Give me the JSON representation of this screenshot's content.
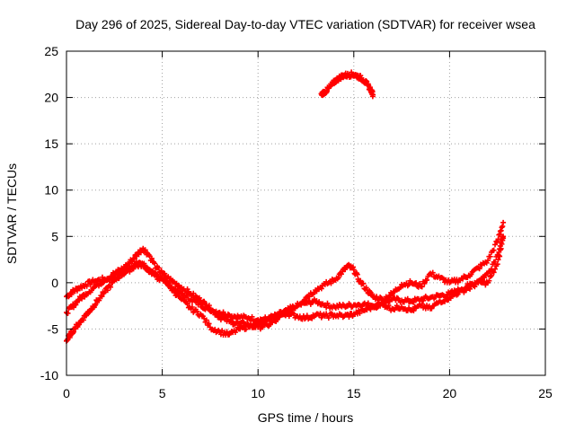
{
  "chart_data": {
    "type": "scatter",
    "title": "Day 296 of 2025, Sidereal Day-to-day VTEC variation (SDTVAR) for receiver wsea",
    "xlabel": "GPS time / hours",
    "ylabel": "SDTVAR / TECUs",
    "xlim": [
      0,
      25
    ],
    "ylim": [
      -10,
      25
    ],
    "xticks": [
      0,
      5,
      10,
      15,
      20,
      25
    ],
    "yticks": [
      -10,
      -5,
      0,
      5,
      10,
      15,
      20,
      25
    ],
    "grid": true,
    "marker": "+",
    "color": "#ff0000",
    "series": [
      {
        "name": "arc-1",
        "points": [
          [
            0.0,
            -1.5
          ],
          [
            0.3,
            -1.0
          ],
          [
            0.6,
            -0.6
          ],
          [
            1.0,
            -0.2
          ],
          [
            1.5,
            0.2
          ],
          [
            2.0,
            0.4
          ],
          [
            2.5,
            0.5
          ],
          [
            3.0,
            1.2
          ],
          [
            3.4,
            1.8
          ],
          [
            3.8,
            2.2
          ],
          [
            4.2,
            1.5
          ],
          [
            4.6,
            0.8
          ],
          [
            5.0,
            0.5
          ],
          [
            5.5,
            -0.5
          ],
          [
            6.0,
            -1.2
          ],
          [
            6.5,
            -1.8
          ],
          [
            7.0,
            -2.4
          ],
          [
            7.5,
            -2.9
          ],
          [
            8.0,
            -3.2
          ],
          [
            8.5,
            -3.5
          ],
          [
            9.0,
            -3.7
          ],
          [
            9.5,
            -3.8
          ],
          [
            10.0,
            -4.0
          ],
          [
            10.5,
            -3.9
          ],
          [
            11.0,
            -3.5
          ],
          [
            11.5,
            -3.0
          ],
          [
            12.0,
            -2.5
          ],
          [
            12.5,
            -2.2
          ],
          [
            13.0,
            -2.0
          ],
          [
            13.5,
            -2.4
          ],
          [
            14.0,
            -2.6
          ],
          [
            14.5,
            -2.5
          ],
          [
            15.0,
            -2.4
          ],
          [
            15.5,
            -2.3
          ],
          [
            16.0,
            -2.5
          ],
          [
            16.5,
            -2.2
          ],
          [
            17.0,
            -1.8
          ],
          [
            17.5,
            -1.9
          ],
          [
            18.0,
            -2.0
          ],
          [
            18.5,
            -1.8
          ],
          [
            19.0,
            -1.6
          ],
          [
            19.5,
            -1.4
          ],
          [
            20.0,
            -1.2
          ],
          [
            20.5,
            -0.8
          ],
          [
            21.0,
            -0.3
          ],
          [
            21.5,
            0.2
          ],
          [
            22.0,
            1.0
          ],
          [
            22.5,
            3.0
          ],
          [
            22.8,
            5.0
          ]
        ]
      },
      {
        "name": "arc-2",
        "points": [
          [
            0.0,
            -3.2
          ],
          [
            0.3,
            -2.6
          ],
          [
            0.6,
            -1.9
          ],
          [
            1.0,
            -1.2
          ],
          [
            1.5,
            -0.4
          ],
          [
            2.0,
            0.3
          ],
          [
            2.5,
            1.0
          ],
          [
            3.0,
            1.6
          ],
          [
            3.4,
            2.4
          ],
          [
            3.7,
            3.1
          ],
          [
            4.0,
            3.7
          ],
          [
            4.3,
            3.0
          ],
          [
            4.7,
            1.6
          ],
          [
            5.0,
            1.0
          ],
          [
            5.5,
            0.2
          ],
          [
            6.0,
            -0.5
          ],
          [
            6.5,
            -1.2
          ],
          [
            7.0,
            -1.9
          ],
          [
            7.3,
            -2.4
          ],
          [
            7.6,
            -3.0
          ],
          [
            8.0,
            -3.7
          ],
          [
            8.5,
            -4.2
          ],
          [
            9.0,
            -4.4
          ],
          [
            9.5,
            -4.5
          ],
          [
            10.0,
            -4.8
          ],
          [
            10.5,
            -4.6
          ],
          [
            11.0,
            -4.0
          ],
          [
            11.5,
            -3.2
          ],
          [
            12.0,
            -2.5
          ],
          [
            12.5,
            -1.6
          ],
          [
            13.0,
            -0.8
          ],
          [
            13.5,
            -0.2
          ],
          [
            14.0,
            0.3
          ],
          [
            14.4,
            1.2
          ],
          [
            14.7,
            1.8
          ],
          [
            15.0,
            1.4
          ],
          [
            15.3,
            0.2
          ],
          [
            15.7,
            -0.8
          ],
          [
            16.0,
            -1.5
          ],
          [
            16.5,
            -1.8
          ],
          [
            17.0,
            -1.2
          ],
          [
            17.5,
            -0.2
          ],
          [
            18.0,
            0.0
          ],
          [
            18.5,
            -0.4
          ],
          [
            19.0,
            1.0
          ],
          [
            19.5,
            0.5
          ],
          [
            20.0,
            0.0
          ],
          [
            20.5,
            0.3
          ],
          [
            21.0,
            0.8
          ],
          [
            21.5,
            1.6
          ],
          [
            22.0,
            2.4
          ],
          [
            22.5,
            4.5
          ],
          [
            22.8,
            6.5
          ]
        ]
      },
      {
        "name": "arc-3",
        "points": [
          [
            0.0,
            -6.3
          ],
          [
            0.2,
            -5.6
          ],
          [
            0.4,
            -5.0
          ],
          [
            0.7,
            -4.3
          ],
          [
            1.0,
            -3.5
          ],
          [
            1.3,
            -2.8
          ],
          [
            1.6,
            -2.0
          ],
          [
            2.0,
            -1.0
          ],
          [
            2.4,
            0.0
          ],
          [
            2.8,
            0.8
          ],
          [
            3.2,
            1.3
          ],
          [
            3.6,
            1.8
          ],
          [
            4.0,
            2.0
          ],
          [
            4.4,
            1.2
          ],
          [
            4.8,
            0.5
          ],
          [
            5.2,
            0.1
          ],
          [
            5.6,
            -0.9
          ],
          [
            6.0,
            -1.8
          ],
          [
            6.5,
            -2.8
          ],
          [
            7.0,
            -3.4
          ],
          [
            7.5,
            -4.8
          ],
          [
            8.0,
            -5.3
          ],
          [
            8.5,
            -5.6
          ],
          [
            9.0,
            -5.0
          ],
          [
            9.5,
            -4.7
          ],
          [
            10.0,
            -4.5
          ],
          [
            10.5,
            -4.0
          ],
          [
            11.0,
            -3.6
          ],
          [
            11.5,
            -3.3
          ],
          [
            12.0,
            -3.6
          ],
          [
            12.5,
            -3.8
          ],
          [
            13.0,
            -3.5
          ],
          [
            13.5,
            -3.6
          ],
          [
            14.0,
            -3.5
          ],
          [
            14.5,
            -3.6
          ],
          [
            15.0,
            -3.4
          ],
          [
            15.5,
            -3.0
          ],
          [
            16.0,
            -2.6
          ],
          [
            16.5,
            -2.3
          ],
          [
            17.0,
            -2.8
          ],
          [
            17.5,
            -2.6
          ],
          [
            18.0,
            -3.0
          ],
          [
            18.5,
            -2.5
          ],
          [
            19.0,
            -2.8
          ],
          [
            19.5,
            -2.0
          ],
          [
            20.0,
            -1.6
          ],
          [
            20.5,
            -1.0
          ],
          [
            21.0,
            -0.6
          ],
          [
            21.5,
            0.0
          ],
          [
            22.0,
            0.0
          ],
          [
            22.5,
            2.0
          ],
          [
            22.8,
            4.8
          ]
        ]
      },
      {
        "name": "arc-4",
        "points": [
          [
            13.3,
            20.4
          ],
          [
            13.5,
            20.6
          ],
          [
            13.7,
            21.0
          ],
          [
            13.9,
            21.5
          ],
          [
            14.1,
            21.9
          ],
          [
            14.3,
            22.2
          ],
          [
            14.5,
            22.4
          ],
          [
            14.7,
            22.4
          ],
          [
            14.9,
            22.5
          ],
          [
            15.1,
            22.4
          ],
          [
            15.3,
            22.2
          ],
          [
            15.5,
            21.9
          ],
          [
            15.7,
            21.4
          ],
          [
            15.9,
            20.8
          ],
          [
            16.0,
            20.3
          ]
        ]
      }
    ]
  }
}
